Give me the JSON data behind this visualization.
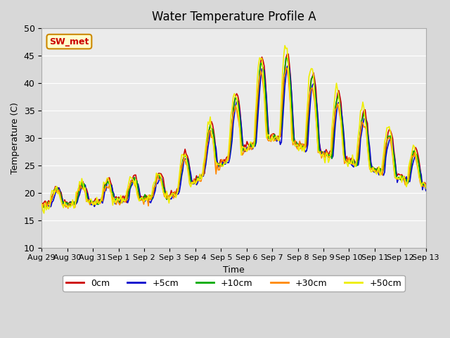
{
  "title": "Water Temperature Profile A",
  "xlabel": "Time",
  "ylabel": "Temperature (C)",
  "ylim": [
    10,
    50
  ],
  "yticks": [
    10,
    15,
    20,
    25,
    30,
    35,
    40,
    45,
    50
  ],
  "xlabels": [
    "Aug 29",
    "Aug 30",
    "Aug 31",
    "Sep 1",
    "Sep 2",
    "Sep 3",
    "Sep 4",
    "Sep 5",
    "Sep 6",
    "Sep 7",
    "Sep 8",
    "Sep 9",
    "Sep 10",
    "Sep 11",
    "Sep 12",
    "Sep 13"
  ],
  "legend_labels": [
    "0cm",
    "+5cm",
    "+10cm",
    "+30cm",
    "+50cm"
  ],
  "legend_colors": [
    "#cc0000",
    "#0000cc",
    "#00aa00",
    "#ff8800",
    "#eeee00"
  ],
  "annotation_text": "SW_met",
  "annotation_color": "#cc0000",
  "annotation_bg": "#ffffcc",
  "annotation_border": "#cc8800",
  "line_width": 1.2,
  "num_points": 336,
  "days": 15
}
